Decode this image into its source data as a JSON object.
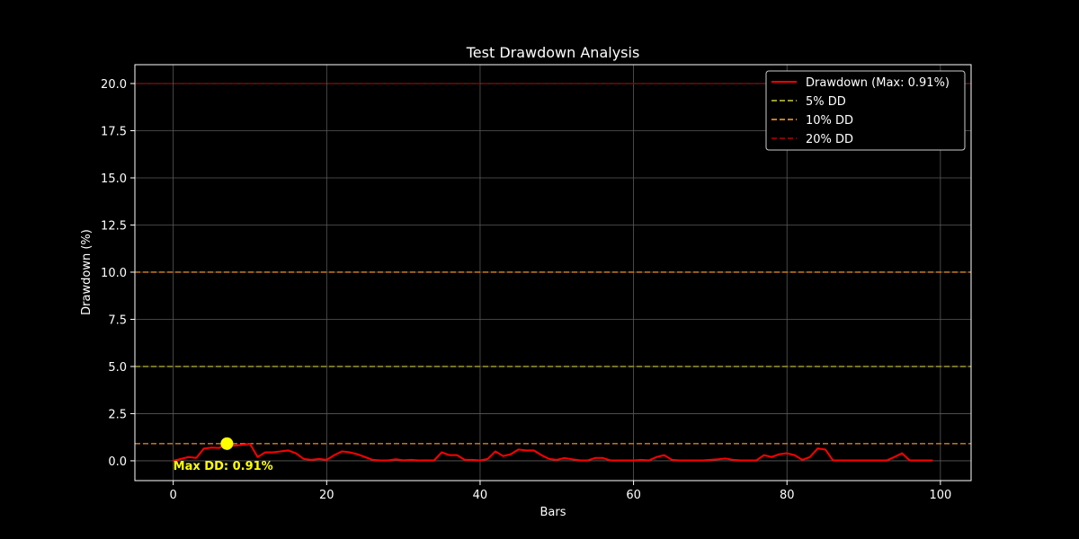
{
  "chart_data": {
    "type": "line",
    "title": "Test Drawdown Analysis",
    "xlabel": "Bars",
    "ylabel": "Drawdown (%)",
    "xlim": [
      -5,
      104
    ],
    "ylim": [
      -1.05,
      21
    ],
    "x_ticks": [
      0,
      20,
      40,
      60,
      80,
      100
    ],
    "y_ticks": [
      0.0,
      2.5,
      5.0,
      7.5,
      10.0,
      12.5,
      15.0,
      17.5,
      20.0
    ],
    "grid": true,
    "legend_position": "top-right",
    "series": [
      {
        "name": "Drawdown (Max: 0.91%)",
        "color": "#ff0000",
        "style": "solid",
        "x": [
          0,
          1,
          2,
          3,
          4,
          5,
          6,
          7,
          8,
          9,
          10,
          11,
          12,
          13,
          14,
          15,
          16,
          17,
          18,
          19,
          20,
          21,
          22,
          23,
          24,
          25,
          26,
          27,
          28,
          29,
          30,
          31,
          32,
          33,
          34,
          35,
          36,
          37,
          38,
          39,
          40,
          41,
          42,
          43,
          44,
          45,
          46,
          47,
          48,
          49,
          50,
          51,
          52,
          53,
          54,
          55,
          56,
          57,
          58,
          59,
          60,
          61,
          62,
          63,
          64,
          65,
          66,
          67,
          68,
          69,
          70,
          71,
          72,
          73,
          74,
          75,
          76,
          77,
          78,
          79,
          80,
          81,
          82,
          83,
          84,
          85,
          86,
          87,
          88,
          89,
          90,
          91,
          92,
          93,
          94,
          95,
          96,
          97,
          98,
          99
        ],
        "y": [
          0.0,
          0.1,
          0.2,
          0.15,
          0.65,
          0.7,
          0.68,
          0.91,
          0.8,
          0.85,
          0.9,
          0.2,
          0.45,
          0.45,
          0.5,
          0.55,
          0.4,
          0.1,
          0.05,
          0.1,
          0.05,
          0.3,
          0.5,
          0.45,
          0.35,
          0.2,
          0.05,
          0.02,
          0.02,
          0.08,
          0.03,
          0.05,
          0.02,
          0.03,
          0.02,
          0.45,
          0.3,
          0.3,
          0.05,
          0.05,
          0.02,
          0.1,
          0.5,
          0.25,
          0.35,
          0.6,
          0.55,
          0.55,
          0.3,
          0.1,
          0.05,
          0.15,
          0.08,
          0.03,
          0.02,
          0.15,
          0.15,
          0.02,
          0.02,
          0.02,
          0.02,
          0.05,
          0.02,
          0.2,
          0.3,
          0.05,
          0.02,
          0.02,
          0.02,
          0.02,
          0.05,
          0.08,
          0.12,
          0.05,
          0.02,
          0.02,
          0.02,
          0.3,
          0.2,
          0.35,
          0.4,
          0.3,
          0.05,
          0.2,
          0.65,
          0.6,
          0.02,
          0.02,
          0.02,
          0.02,
          0.02,
          0.02,
          0.02,
          0.02,
          0.2,
          0.4,
          0.02,
          0.02,
          0.02,
          0.02
        ]
      },
      {
        "name": "5% DD",
        "color": "#9a9a2a",
        "style": "dashed",
        "hline": 5
      },
      {
        "name": "10% DD",
        "color": "#cc7a1e",
        "style": "dashed",
        "hline": 10
      },
      {
        "name": "20% DD",
        "color": "#8b0000",
        "style": "dashed",
        "hline": 20
      }
    ],
    "extra_hline": {
      "y": 0.91,
      "color": "#cc7a1e",
      "style": "dashed"
    },
    "max_marker": {
      "x": 7,
      "y": 0.91,
      "color": "#ffff00",
      "label": "Max DD: 0.91%"
    }
  }
}
